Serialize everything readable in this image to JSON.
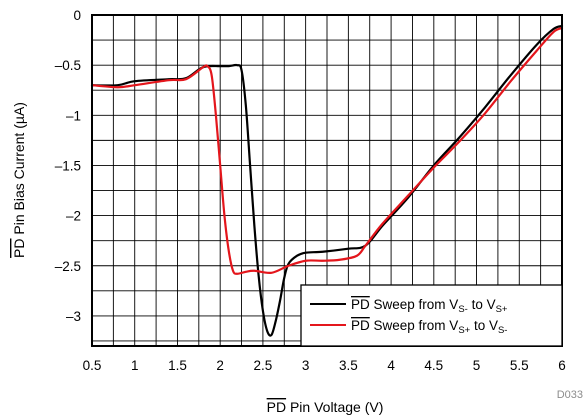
{
  "chart_data": {
    "type": "line",
    "xlabel": {
      "overline": "PD",
      "rest": " Pin Voltage (V)"
    },
    "ylabel": {
      "overline": "PD",
      "rest": " Pin Bias Current (µA)"
    },
    "xlim": [
      0.5,
      6
    ],
    "ylim": [
      -3.3,
      0
    ],
    "x_ticks": [
      {
        "value": 0.5,
        "label": "0.5"
      },
      {
        "value": 1,
        "label": "1"
      },
      {
        "value": 1.5,
        "label": "1.5"
      },
      {
        "value": 2,
        "label": "2"
      },
      {
        "value": 2.5,
        "label": "2.5"
      },
      {
        "value": 3,
        "label": "3"
      },
      {
        "value": 3.5,
        "label": "3.5"
      },
      {
        "value": 4,
        "label": "4"
      },
      {
        "value": 4.5,
        "label": "4.5"
      },
      {
        "value": 5,
        "label": "5"
      },
      {
        "value": 5.5,
        "label": "5.5"
      },
      {
        "value": 6,
        "label": "6"
      }
    ],
    "y_ticks": [
      {
        "value": 0,
        "label": "0"
      },
      {
        "value": -0.5,
        "label": "–0.5"
      },
      {
        "value": -1,
        "label": "–1"
      },
      {
        "value": -1.5,
        "label": "–1.5"
      },
      {
        "value": -2,
        "label": "–2"
      },
      {
        "value": -2.5,
        "label": "–2.5"
      },
      {
        "value": -3,
        "label": "–3"
      }
    ],
    "grid_x_minor": [
      0.75,
      1.25,
      1.75,
      2.25,
      2.75,
      3.25,
      3.75,
      4.25,
      4.75,
      5.25,
      5.75
    ],
    "grid_y_minor": [
      -0.25,
      -0.75,
      -1.25,
      -1.75,
      -2.25,
      -2.75,
      -3.25
    ],
    "grid": true,
    "legend_position": "bottom-right",
    "series": [
      {
        "name": "Sweep from V_S- to V_S+",
        "legend": {
          "overline": "PD",
          "mid": " Sweep from V",
          "sub1": "S-",
          "to": " to V",
          "sub2": "S+"
        },
        "color": "#000000",
        "x": [
          0.5,
          0.8,
          1.0,
          1.4,
          1.6,
          1.8,
          2.0,
          2.1,
          2.2,
          2.25,
          2.3,
          2.35,
          2.4,
          2.45,
          2.5,
          2.55,
          2.6,
          2.65,
          2.7,
          2.75,
          2.8,
          2.9,
          3.0,
          3.2,
          3.5,
          3.7,
          3.9,
          4.2,
          4.5,
          4.8,
          5.1,
          5.4,
          5.7,
          5.9,
          6.0
        ],
        "y": [
          -0.7,
          -0.7,
          -0.66,
          -0.64,
          -0.63,
          -0.52,
          -0.51,
          -0.51,
          -0.5,
          -0.55,
          -0.9,
          -1.5,
          -2.1,
          -2.6,
          -2.95,
          -3.15,
          -3.19,
          -3.05,
          -2.85,
          -2.62,
          -2.48,
          -2.4,
          -2.37,
          -2.36,
          -2.33,
          -2.3,
          -2.1,
          -1.82,
          -1.5,
          -1.22,
          -0.92,
          -0.6,
          -0.3,
          -0.14,
          -0.11
        ]
      },
      {
        "name": "Sweep from V_S+ to V_S-",
        "legend": {
          "overline": "PD",
          "mid": " Sweep from V",
          "sub1": "S+",
          "to": " to V",
          "sub2": "S-"
        },
        "color": "#e4161c",
        "x": [
          0.5,
          0.8,
          1.0,
          1.4,
          1.6,
          1.8,
          1.85,
          1.9,
          1.95,
          2.0,
          2.05,
          2.1,
          2.15,
          2.2,
          2.3,
          2.4,
          2.6,
          2.8,
          3.0,
          3.2,
          3.4,
          3.6,
          3.7,
          3.9,
          4.2,
          4.5,
          4.8,
          5.1,
          5.4,
          5.7,
          5.9,
          6.0
        ],
        "y": [
          -0.7,
          -0.72,
          -0.7,
          -0.65,
          -0.64,
          -0.52,
          -0.51,
          -0.6,
          -1.0,
          -1.5,
          -2.0,
          -2.35,
          -2.55,
          -2.58,
          -2.56,
          -2.55,
          -2.57,
          -2.5,
          -2.45,
          -2.45,
          -2.44,
          -2.4,
          -2.3,
          -2.08,
          -1.8,
          -1.52,
          -1.26,
          -0.98,
          -0.66,
          -0.36,
          -0.17,
          -0.13
        ]
      }
    ],
    "code": "D033"
  }
}
